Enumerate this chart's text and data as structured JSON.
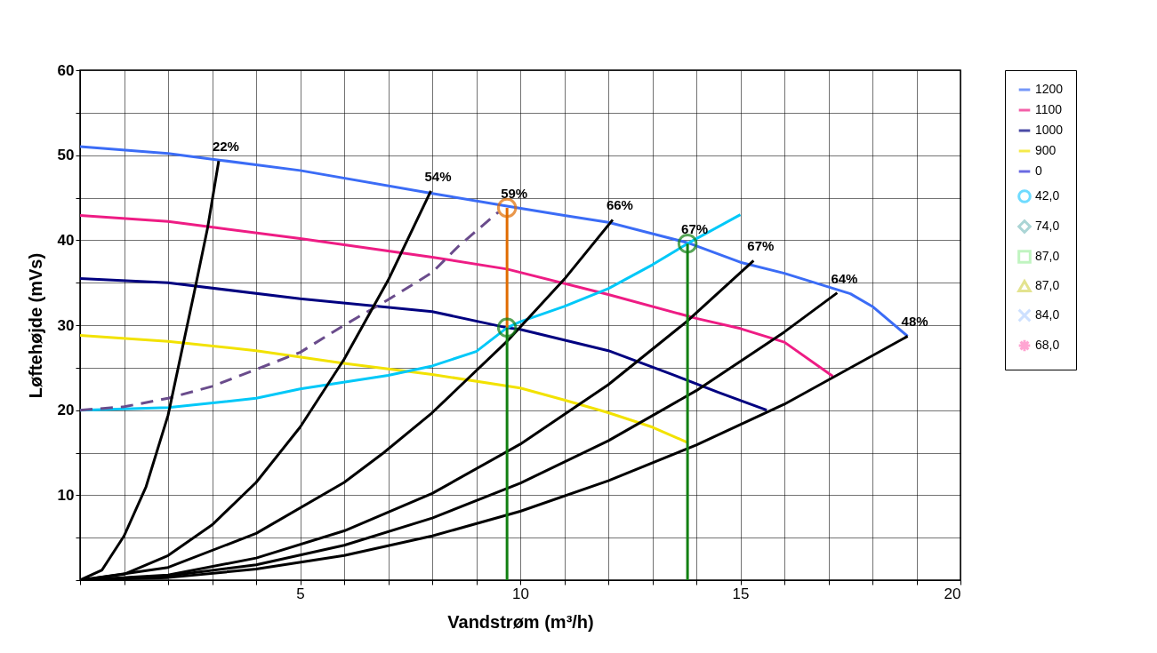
{
  "chart_data": {
    "type": "line",
    "xlabel": "Vandstrøm (m³/h)",
    "ylabel": "Løftehøjde (mVs)",
    "xlim": [
      0,
      20
    ],
    "ylim": [
      0,
      60
    ],
    "xticks": [
      {
        "value": 0,
        "label": null
      },
      {
        "value": 1,
        "label": null
      },
      {
        "value": 2,
        "label": null
      },
      {
        "value": 3,
        "label": null
      },
      {
        "value": 4,
        "label": null
      },
      5,
      {
        "value": 6,
        "label": null
      },
      {
        "value": 7,
        "label": null
      },
      {
        "value": 8,
        "label": null
      },
      {
        "value": 9,
        "label": null
      },
      10,
      {
        "value": 11,
        "label": null
      },
      {
        "value": 12,
        "label": null
      },
      {
        "value": 13,
        "label": null
      },
      {
        "value": 14,
        "label": null
      },
      15,
      {
        "value": 16,
        "label": null
      },
      {
        "value": 17,
        "label": null
      },
      {
        "value": 18,
        "label": null
      },
      {
        "value": 19,
        "label": null
      },
      20
    ],
    "yticks": [
      {
        "value": 0,
        "label": null
      },
      {
        "value": 5,
        "label": null
      },
      10,
      {
        "value": 15,
        "label": null
      },
      20,
      {
        "value": 25,
        "label": null
      },
      30,
      {
        "value": 35,
        "label": null
      },
      40,
      {
        "value": 45,
        "label": null
      },
      50,
      {
        "value": 55,
        "label": null
      },
      60
    ],
    "grid": true,
    "legend": "right",
    "series": [
      {
        "name": "1200",
        "color": "#3b6cf6",
        "x": [
          0,
          2,
          3.2,
          5,
          8,
          9.7,
          11,
          12,
          13.8,
          15,
          16,
          17.5,
          18,
          18.8
        ],
        "values": [
          51,
          50.2,
          49.4,
          48.2,
          45.5,
          44,
          42.9,
          42.1,
          39.7,
          37.4,
          36.1,
          33.7,
          32.2,
          28.7
        ]
      },
      {
        "name": "1100",
        "color": "#ee1c84",
        "x": [
          0,
          2,
          5,
          8,
          9.7,
          12,
          14,
          15,
          16,
          17.1
        ],
        "values": [
          42.9,
          42.2,
          40.2,
          38,
          36.6,
          33.6,
          30.8,
          29.6,
          28,
          24
        ]
      },
      {
        "name": "1000",
        "color": "#000080",
        "x": [
          0,
          2,
          5,
          8,
          9.7,
          10,
          12,
          13.5,
          14.5,
          15.6
        ],
        "values": [
          35.5,
          35,
          33.1,
          31.6,
          29.7,
          29.5,
          27,
          24.1,
          22.1,
          20
        ]
      },
      {
        "name": "900",
        "color": "#f2e200",
        "x": [
          0,
          2,
          4,
          6,
          8,
          10,
          11,
          12,
          13,
          13.8
        ],
        "values": [
          28.8,
          28.1,
          27,
          25.5,
          24.2,
          22.6,
          21.2,
          19.7,
          18,
          16.2
        ]
      },
      {
        "name": "0",
        "color": "#2b2bd6"
      },
      {
        "name": "42,0",
        "color": "#33ccff",
        "type": "scatter",
        "marker": "circle"
      },
      {
        "name": "74,0",
        "color": "#88c4c4",
        "type": "scatter",
        "marker": "diamond"
      },
      {
        "name": "87,0",
        "color": "#a6f0a6",
        "type": "scatter",
        "marker": "square"
      },
      {
        "name": "87,0",
        "color": "#d8d860",
        "type": "scatter",
        "marker": "triangle"
      },
      {
        "name": "84,0",
        "color": "#b8d4ff",
        "type": "scatter",
        "marker": "cross"
      },
      {
        "name": "68,0",
        "color": "#ff80c0",
        "type": "scatter",
        "marker": "star"
      },
      {
        "color": "#00c8f8",
        "x": [
          0,
          2,
          4,
          5,
          7,
          8,
          9,
          9.7,
          10,
          11,
          12,
          13,
          13.8,
          15
        ],
        "values": [
          20,
          20.3,
          21.4,
          22.5,
          24.1,
          25.2,
          26.9,
          29.7,
          30.4,
          32.2,
          34.3,
          37.1,
          39.6,
          43
        ]
      },
      {
        "color": "#6a4c8c",
        "line_style": "dashed",
        "x": [
          0,
          1,
          2,
          3,
          4,
          5,
          6,
          7,
          8,
          8.6,
          9.5
        ],
        "values": [
          20,
          20.4,
          21.4,
          22.8,
          24.8,
          26.8,
          30,
          33,
          36.2,
          39.3,
          43.3
        ]
      },
      {
        "color": "#000000",
        "x": [
          0,
          0.5,
          1,
          1.5,
          2,
          2.6,
          2.9,
          3.15
        ],
        "values": [
          0,
          1.2,
          5.2,
          11,
          19.4,
          34,
          41.5,
          49.3
        ]
      },
      {
        "color": "#000000",
        "x": [
          0,
          1,
          2,
          3,
          4,
          5,
          6,
          7,
          7.97
        ],
        "values": [
          0,
          0.7,
          2.9,
          6.5,
          11.5,
          18,
          26,
          35.3,
          45.8
        ]
      },
      {
        "color": "#000000",
        "x": [
          0,
          2,
          4,
          6,
          6.9,
          8,
          9.7,
          11,
          12.1
        ],
        "values": [
          0,
          1.5,
          5.5,
          11.5,
          15,
          19.7,
          28.1,
          35.4,
          42.4
        ]
      },
      {
        "color": "#000000",
        "x": [
          0,
          2,
          4,
          6,
          8,
          10,
          12,
          13.8,
          15.3
        ],
        "values": [
          0,
          0.6,
          2.6,
          5.8,
          10.2,
          16,
          23,
          30.5,
          37.6
        ]
      },
      {
        "color": "#000000",
        "x": [
          0,
          2,
          4,
          6,
          8,
          10,
          12,
          14,
          16,
          17.2
        ],
        "values": [
          0,
          0.5,
          1.8,
          4.1,
          7.3,
          11.4,
          16.4,
          22.3,
          29.2,
          33.8
        ]
      },
      {
        "color": "#000000",
        "x": [
          0,
          2,
          4,
          6,
          8,
          10,
          12,
          14,
          16,
          18.8
        ],
        "values": [
          0,
          0.3,
          1.3,
          2.9,
          5.2,
          8.1,
          11.7,
          15.9,
          20.7,
          28.7
        ]
      },
      {
        "color": "#e06c00",
        "x": [
          9.7,
          9.7
        ],
        "values": [
          43.8,
          29.7
        ]
      },
      {
        "color": "#128012",
        "x": [
          9.7,
          9.7
        ],
        "values": [
          29.7,
          0
        ]
      },
      {
        "color": "#128012",
        "x": [
          13.8,
          13.8
        ],
        "values": [
          39.6,
          0
        ]
      },
      {
        "color": "#e06c00",
        "type": "scatter",
        "marker": "circle",
        "x": [
          9.7
        ],
        "values": [
          43.8
        ]
      },
      {
        "color": "#128012",
        "type": "scatter",
        "marker": "circle",
        "x": [
          9.7,
          13.8
        ],
        "values": [
          29.7,
          39.6
        ]
      }
    ],
    "annotations": [
      {
        "text": "22%",
        "x": 3.15,
        "y": 49.3
      },
      {
        "text": "54%",
        "x": 7.97,
        "y": 45.8
      },
      {
        "text": "59%",
        "x": 9.7,
        "y": 43.8
      },
      {
        "text": "66%",
        "x": 12.1,
        "y": 42.4
      },
      {
        "text": "67%",
        "x": 13.8,
        "y": 39.6
      },
      {
        "text": "67%",
        "x": 15.3,
        "y": 37.6
      },
      {
        "text": "64%",
        "x": 17.2,
        "y": 33.8
      },
      {
        "text": "48%",
        "x": 18.8,
        "y": 28.7
      }
    ]
  }
}
